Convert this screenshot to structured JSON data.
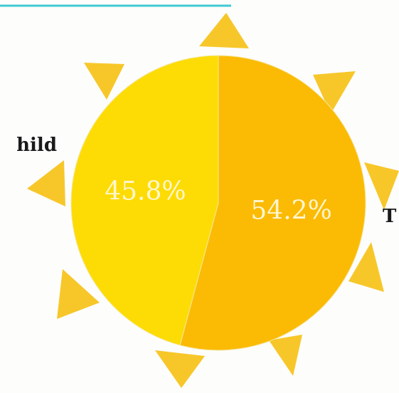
{
  "chart_data": {
    "type": "pie",
    "categories": [
      "T",
      "hild"
    ],
    "values": [
      54.2,
      45.8
    ],
    "value_labels": [
      "54.2%",
      "45.8%"
    ],
    "colors": [
      "#fbbb05",
      "#fddc05"
    ]
  }
}
